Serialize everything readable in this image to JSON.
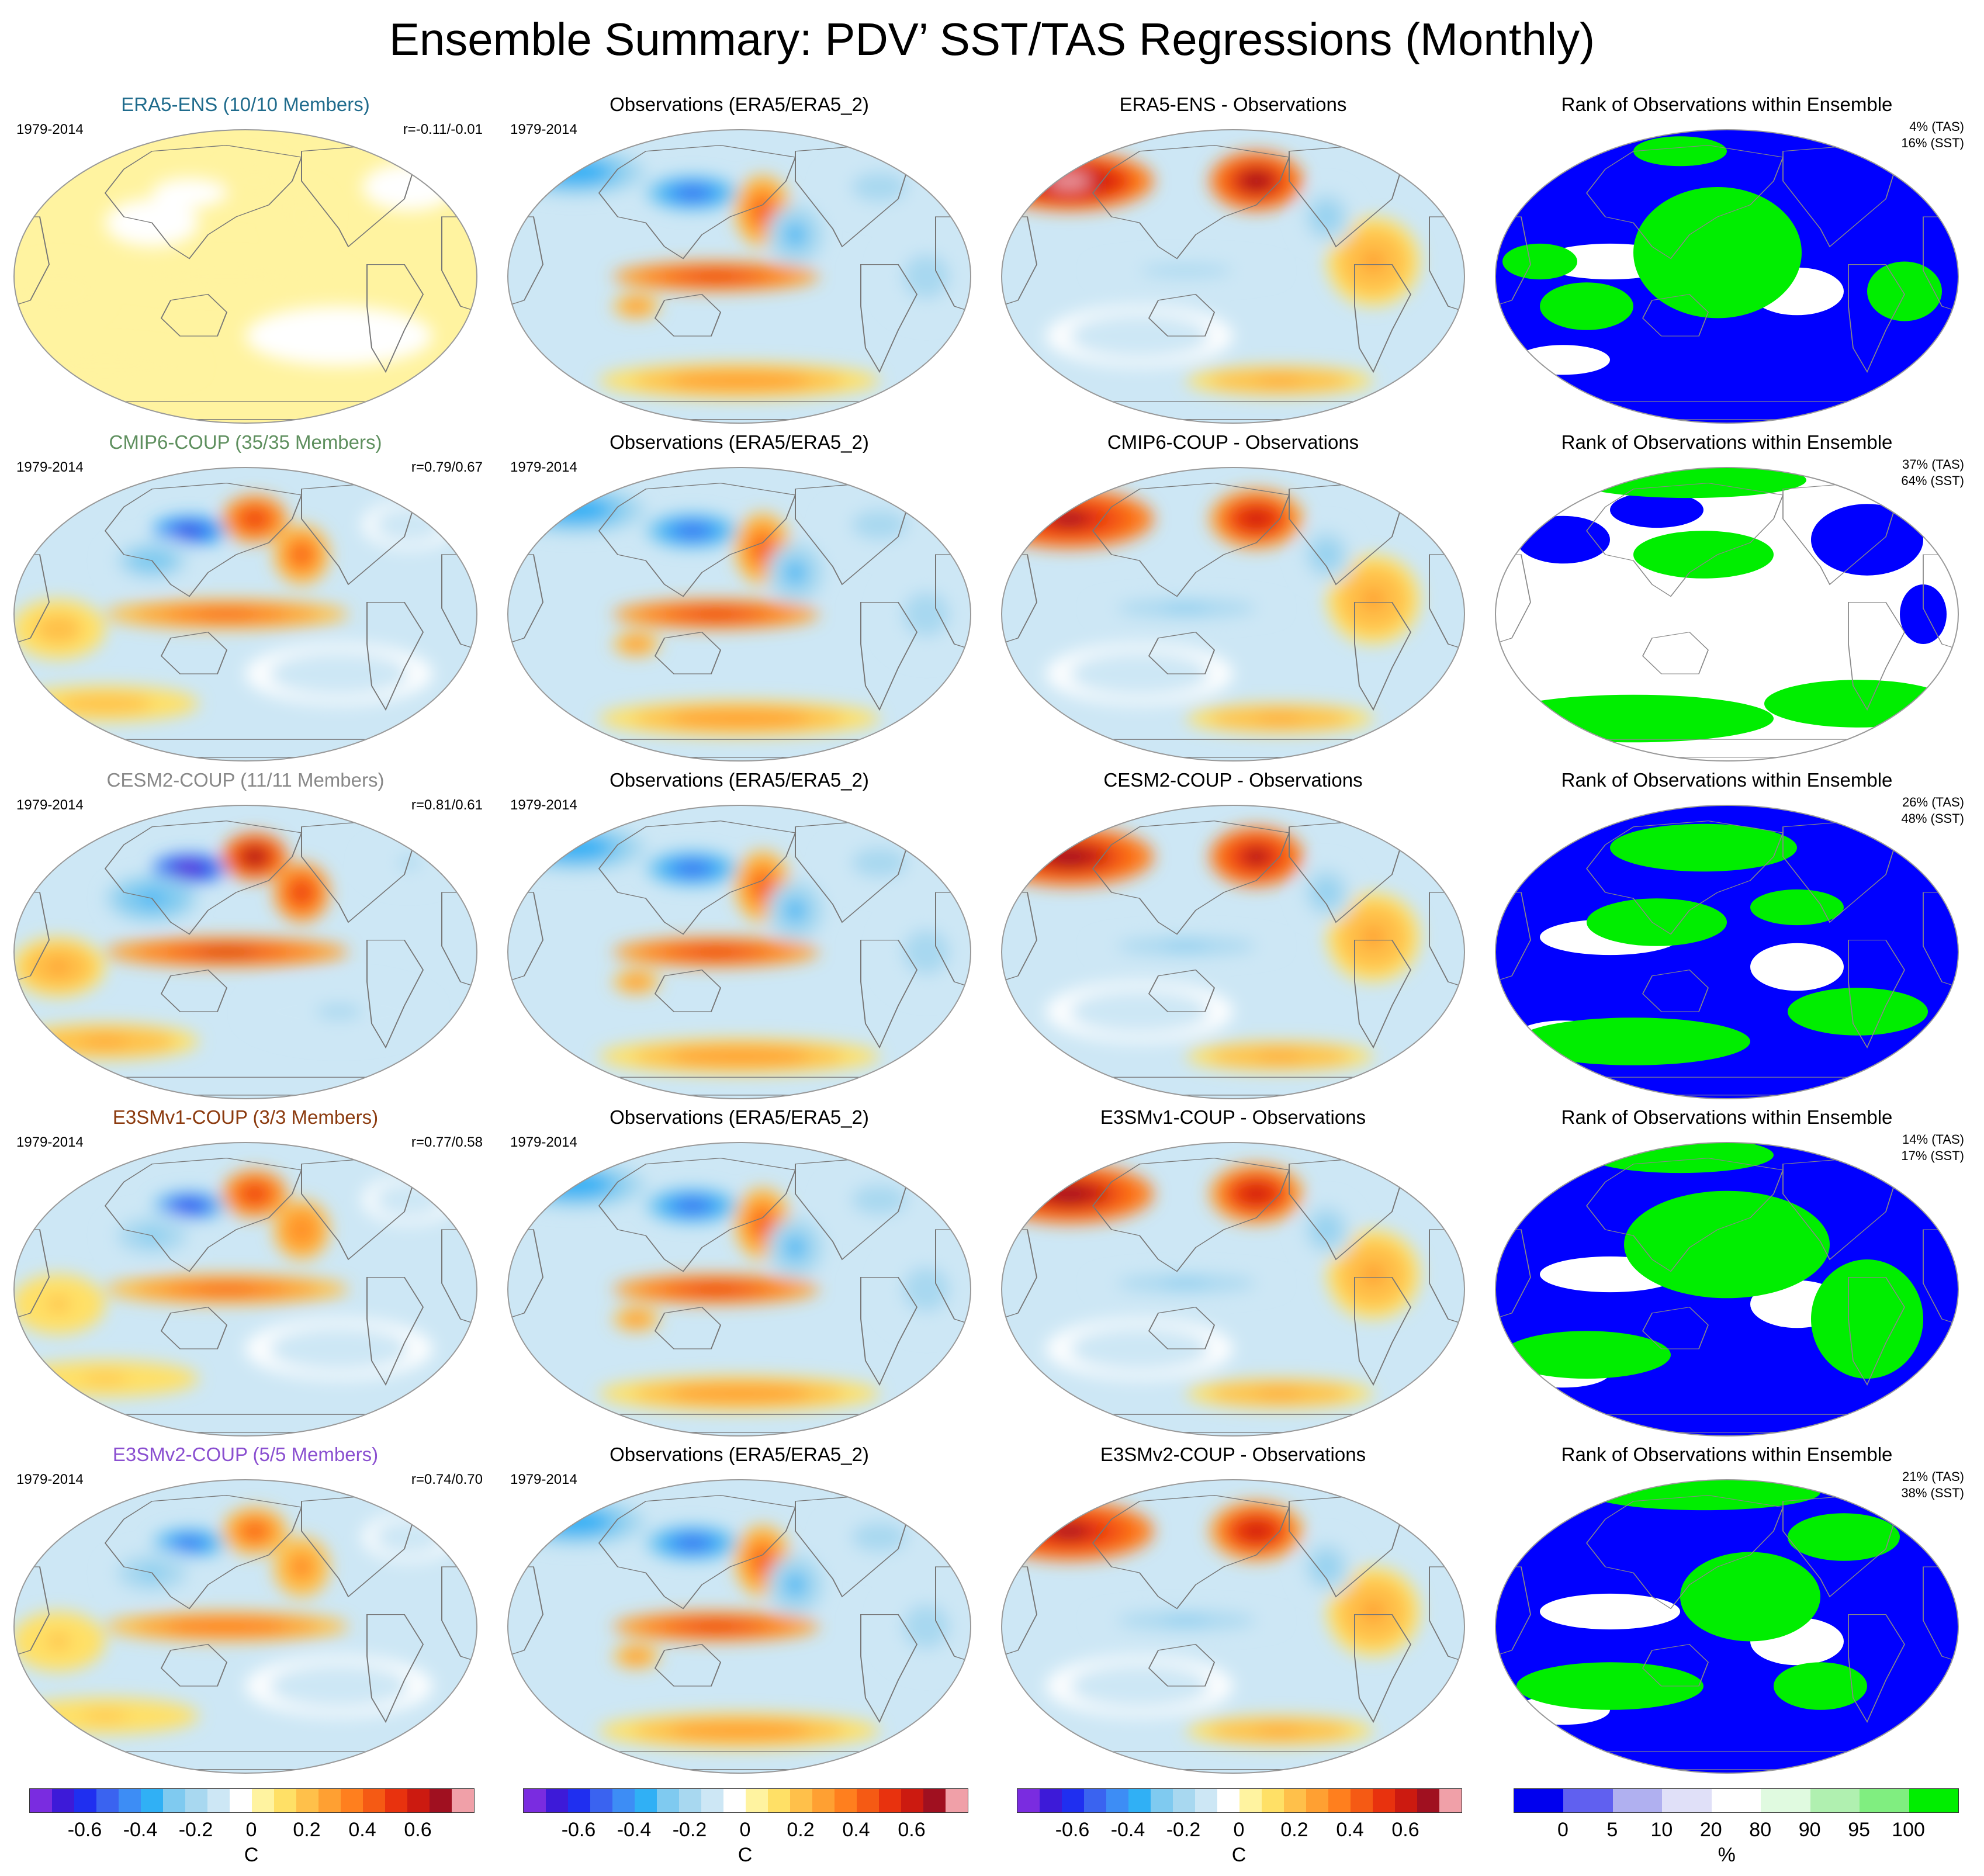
{
  "figure_title": "Ensemble Summary: PDV’ SST/TAS Regressions (Monthly)",
  "colors": {
    "title_era5_ens": "#1f6b8c",
    "title_cmip6": "#5e8f5e",
    "title_cesm2": "#888888",
    "title_e3smv1": "#8b3a0e",
    "title_e3smv2": "#8a4fd0",
    "rank_low": "#0000ff",
    "rank_high": "#00ee00"
  },
  "rows": [
    {
      "model_title": "ERA5-ENS (10/10 Members)",
      "title_color_key": "title_era5_ens",
      "period": "1979-2014",
      "corr": "r=-0.11/-0.01",
      "obs_title": "Observations (ERA5/ERA5_2)",
      "obs_period": "1979-2014",
      "diff_title": "ERA5-ENS - Observations",
      "rank_title": "Rank of Observations within Ensemble",
      "rank_tas": "4% (TAS)",
      "rank_sst": "16% (SST)"
    },
    {
      "model_title": "CMIP6-COUP (35/35 Members)",
      "title_color_key": "title_cmip6",
      "period": "1979-2014",
      "corr": "r=0.79/0.67",
      "obs_title": "Observations (ERA5/ERA5_2)",
      "obs_period": "1979-2014",
      "diff_title": "CMIP6-COUP - Observations",
      "rank_title": "Rank of Observations within Ensemble",
      "rank_tas": "37% (TAS)",
      "rank_sst": "64% (SST)"
    },
    {
      "model_title": "CESM2-COUP (11/11 Members)",
      "title_color_key": "title_cesm2",
      "period": "1979-2014",
      "corr": "r=0.81/0.61",
      "obs_title": "Observations (ERA5/ERA5_2)",
      "obs_period": "1979-2014",
      "diff_title": "CESM2-COUP - Observations",
      "rank_title": "Rank of Observations within Ensemble",
      "rank_tas": "26% (TAS)",
      "rank_sst": "48% (SST)"
    },
    {
      "model_title": "E3SMv1-COUP (3/3 Members)",
      "title_color_key": "title_e3smv1",
      "period": "1979-2014",
      "corr": "r=0.77/0.58",
      "obs_title": "Observations (ERA5/ERA5_2)",
      "obs_period": "1979-2014",
      "diff_title": "E3SMv1-COUP - Observations",
      "rank_title": "Rank of Observations within Ensemble",
      "rank_tas": "14% (TAS)",
      "rank_sst": "17% (SST)"
    },
    {
      "model_title": "E3SMv2-COUP (5/5 Members)",
      "title_color_key": "title_e3smv2",
      "period": "1979-2014",
      "corr": "r=0.74/0.70",
      "obs_title": "Observations (ERA5/ERA5_2)",
      "obs_period": "1979-2014",
      "diff_title": "E3SMv2-COUP - Observations",
      "rank_title": "Rank of Observations within Ensemble",
      "rank_tas": "21% (TAS)",
      "rank_sst": "38% (SST)"
    }
  ],
  "colorbar_temp": {
    "colors": [
      "#7a2ce0",
      "#3d1ad8",
      "#1f2ff0",
      "#3a63f0",
      "#3d8df5",
      "#30b0f5",
      "#7fcaf0",
      "#a8d8f0",
      "#cde7f5",
      "#ffffff",
      "#fff3a0",
      "#ffe066",
      "#ffc04a",
      "#ffa032",
      "#ff7f1e",
      "#f55a14",
      "#e8320e",
      "#cc1a10",
      "#a01020",
      "#f0a0a8"
    ],
    "ticks": [
      "-0.6",
      "-0.4",
      "-0.2",
      "0",
      "0.2",
      "0.4",
      "0.6"
    ],
    "tick_values": [
      -0.6,
      -0.4,
      -0.2,
      0,
      0.2,
      0.4,
      0.6
    ],
    "range": [
      -0.8,
      0.8
    ],
    "unit": "C"
  },
  "colorbar_rank": {
    "colors": [
      "#0000ee",
      "#6060f0",
      "#b0b0f0",
      "#e0e0f8",
      "#ffffff",
      "#e0fae0",
      "#b0f0b0",
      "#80ee80",
      "#00ee00"
    ],
    "ticks": [
      "0",
      "5",
      "10",
      "20",
      "80",
      "90",
      "95",
      "100"
    ],
    "unit": "%"
  }
}
